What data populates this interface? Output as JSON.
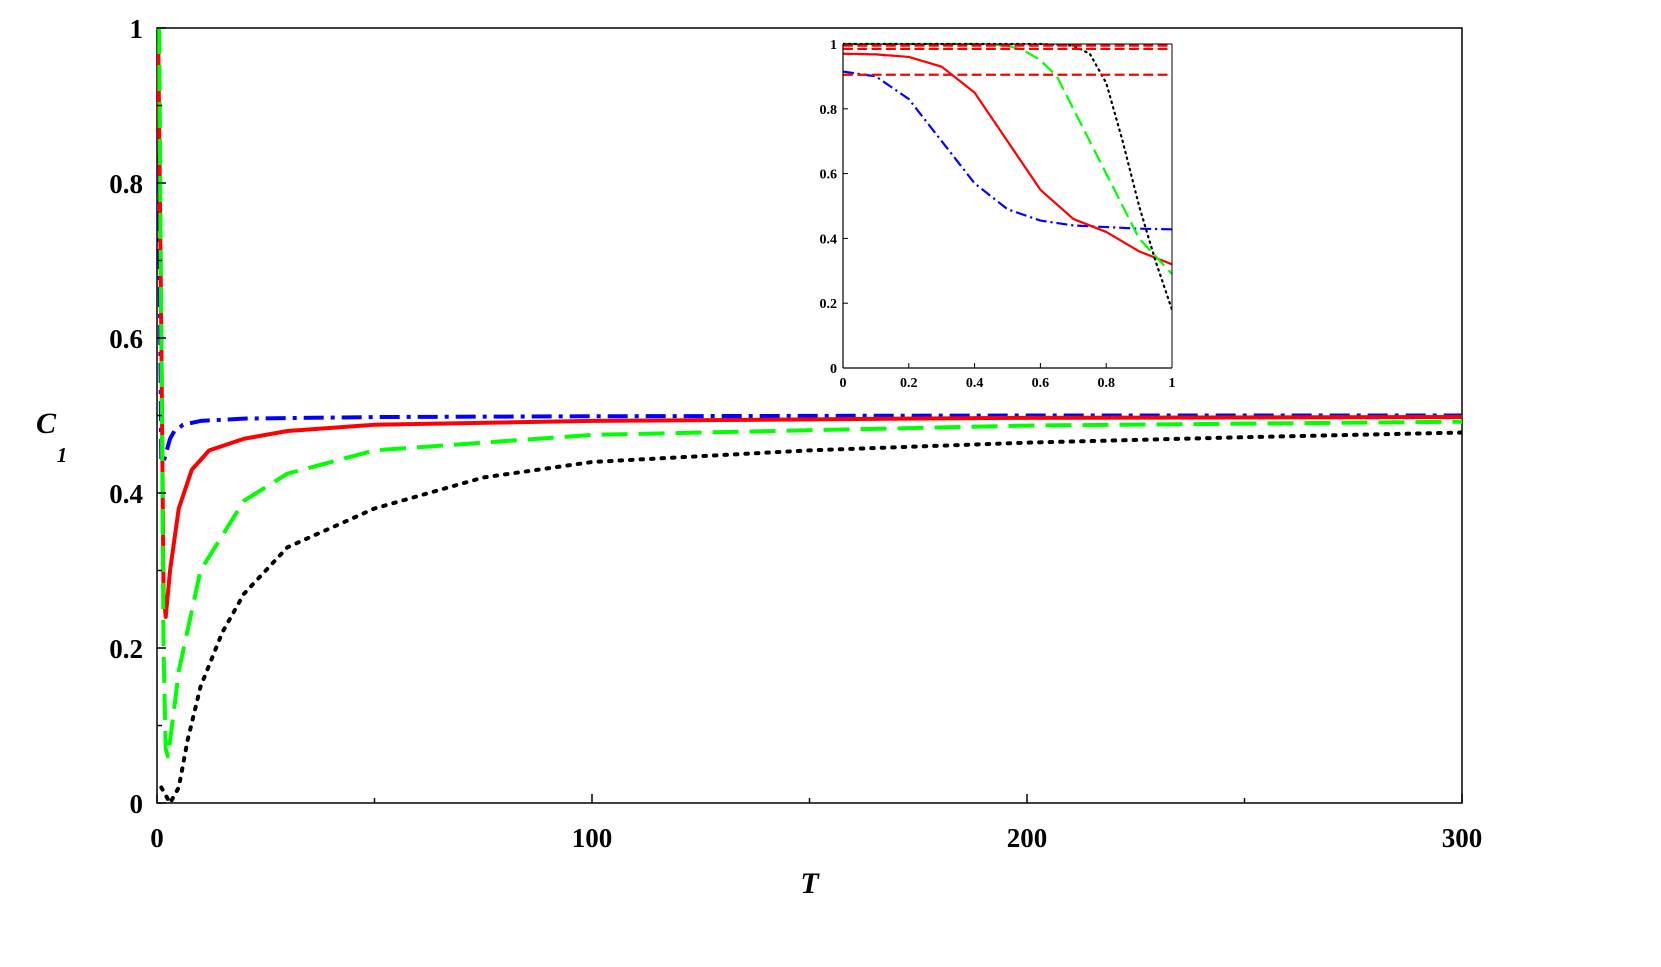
{
  "chart_data": [
    {
      "type": "line",
      "panel": "main",
      "xlabel": "T",
      "ylabel_main": "C",
      "ylabel_sub": "1",
      "xlim": [
        0,
        300
      ],
      "ylim": [
        0,
        1
      ],
      "x_ticks": [
        0,
        100,
        200,
        300
      ],
      "x_tick_labels": [
        "0",
        "100",
        "200",
        "300"
      ],
      "y_ticks": [
        0,
        0.2,
        0.4,
        0.6,
        0.8,
        1
      ],
      "y_tick_labels": [
        "0",
        "0.2",
        "0.4",
        "0.6",
        "0.8",
        "1"
      ],
      "grid": false,
      "series": [
        {
          "style": "dashdot",
          "color": "#0000ff",
          "x": [
            0.2,
            0.6,
            1,
            1.5,
            2,
            3,
            4,
            6,
            10,
            20,
            50,
            100,
            200,
            300
          ],
          "y": [
            0.96,
            0.7,
            0.44,
            0.44,
            0.45,
            0.47,
            0.48,
            0.488,
            0.493,
            0.496,
            0.498,
            0.499,
            0.5,
            0.5
          ]
        },
        {
          "style": "solid",
          "color": "#ff0000",
          "x": [
            0.3,
            1,
            1.5,
            2,
            3,
            5,
            8,
            12,
            20,
            30,
            50,
            100,
            200,
            300
          ],
          "y": [
            0.98,
            0.6,
            0.27,
            0.24,
            0.3,
            0.38,
            0.43,
            0.455,
            0.47,
            0.48,
            0.488,
            0.493,
            0.497,
            0.498
          ]
        },
        {
          "style": "dashed",
          "color": "#00ff00",
          "x": [
            0.5,
            1,
            1.5,
            2,
            2.5,
            3,
            5,
            10,
            20,
            30,
            50,
            100,
            200,
            300
          ],
          "y": [
            1.0,
            0.6,
            0.2,
            0.07,
            0.06,
            0.08,
            0.17,
            0.3,
            0.39,
            0.425,
            0.455,
            0.475,
            0.487,
            0.492
          ]
        },
        {
          "style": "dotted",
          "color": "#000000",
          "x": [
            1,
            3,
            5,
            7,
            10,
            15,
            20,
            30,
            50,
            75,
            100,
            150,
            200,
            250,
            300
          ],
          "y": [
            0.02,
            0.0,
            0.02,
            0.08,
            0.15,
            0.22,
            0.27,
            0.33,
            0.38,
            0.42,
            0.44,
            0.455,
            0.465,
            0.472,
            0.478
          ]
        }
      ]
    },
    {
      "type": "line",
      "panel": "inset",
      "xlim": [
        0,
        1
      ],
      "ylim": [
        0,
        1
      ],
      "x_ticks": [
        0,
        0.2,
        0.4,
        0.6,
        0.8,
        1
      ],
      "x_tick_labels": [
        "0",
        "0.2",
        "0.4",
        "0.6",
        "0.8",
        "1"
      ],
      "y_ticks": [
        0,
        0.2,
        0.4,
        0.6,
        0.8,
        1
      ],
      "y_tick_labels": [
        "0",
        "0.2",
        "0.4",
        "0.6",
        "0.8",
        "1"
      ],
      "grid": false,
      "series": [
        {
          "style": "dashdot",
          "color": "#0000ff",
          "x": [
            0,
            0.1,
            0.2,
            0.3,
            0.4,
            0.5,
            0.6,
            0.7,
            0.8,
            0.9,
            1
          ],
          "y": [
            0.915,
            0.9,
            0.83,
            0.7,
            0.57,
            0.49,
            0.455,
            0.44,
            0.435,
            0.43,
            0.428
          ]
        },
        {
          "style": "solid",
          "color": "#ff0000",
          "x": [
            0,
            0.1,
            0.2,
            0.3,
            0.4,
            0.5,
            0.6,
            0.7,
            0.8,
            0.9,
            1
          ],
          "y": [
            0.97,
            0.968,
            0.96,
            0.93,
            0.85,
            0.7,
            0.55,
            0.46,
            0.42,
            0.36,
            0.32
          ]
        },
        {
          "style": "dashed",
          "color": "#00ff00",
          "x": [
            0,
            0.1,
            0.2,
            0.3,
            0.4,
            0.5,
            0.55,
            0.6,
            0.65,
            0.7,
            0.8,
            0.9,
            1
          ],
          "y": [
            1.0,
            1.0,
            1.0,
            1.0,
            1.0,
            0.995,
            0.98,
            0.95,
            0.9,
            0.8,
            0.6,
            0.4,
            0.29
          ]
        },
        {
          "style": "dotted",
          "color": "#000000",
          "x": [
            0,
            0.2,
            0.4,
            0.6,
            0.7,
            0.75,
            0.8,
            0.85,
            0.9,
            0.95,
            1
          ],
          "y": [
            1.0,
            1.0,
            1.0,
            1.0,
            0.995,
            0.97,
            0.88,
            0.7,
            0.5,
            0.33,
            0.18
          ]
        },
        {
          "style": "longdash",
          "color": "#ff0000",
          "x": [
            0,
            1
          ],
          "y": [
            0.995,
            0.995
          ]
        },
        {
          "style": "longdash",
          "color": "#ff0000",
          "x": [
            0,
            1
          ],
          "y": [
            0.985,
            0.985
          ]
        },
        {
          "style": "longdash",
          "color": "#ff0000",
          "x": [
            0,
            1
          ],
          "y": [
            0.905,
            0.905
          ]
        }
      ]
    }
  ]
}
